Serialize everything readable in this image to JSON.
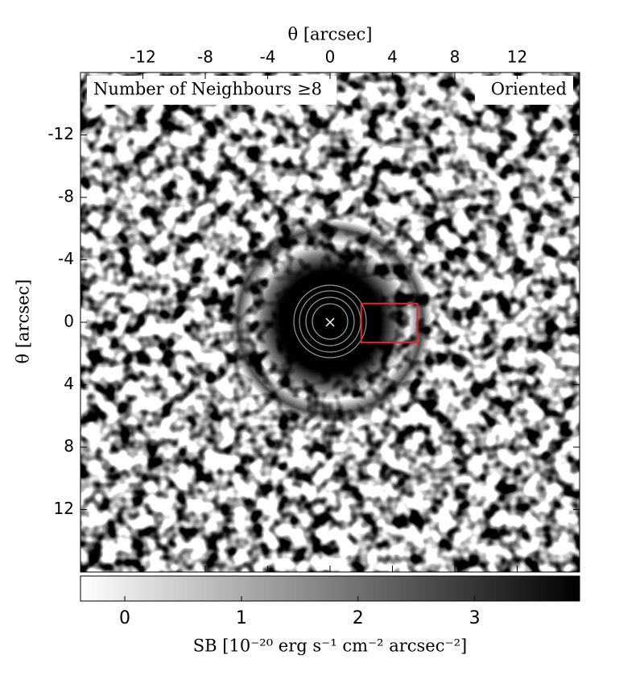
{
  "chart_data": {
    "type": "image",
    "xlabel": "θ [arcsec]",
    "ylabel": "θ [arcsec]",
    "xlim": [
      -16,
      16
    ],
    "xticks": [
      -12,
      -8,
      -4,
      0,
      4,
      8,
      12
    ],
    "ylim": [
      -16,
      16
    ],
    "yticks": [
      -12,
      -8,
      -4,
      0,
      4,
      8,
      12
    ],
    "annotations": [
      "Number of Neighbours ≥8",
      "Oriented"
    ],
    "center": {
      "x": 0,
      "y": 0,
      "color": "#ffffff"
    },
    "box": {
      "x": [
        2,
        5.6
      ],
      "y": [
        -1.2,
        1.3
      ],
      "color": "#e8262a"
    },
    "colorbar": {
      "label": "SB [10⁻²⁰ erg s⁻¹ cm⁻² arcsec⁻²]",
      "lim": [
        -0.38,
        3.9
      ],
      "ticks": [
        0,
        1,
        2,
        3
      ],
      "colors": [
        "#ffffff",
        "#000000"
      ]
    }
  }
}
